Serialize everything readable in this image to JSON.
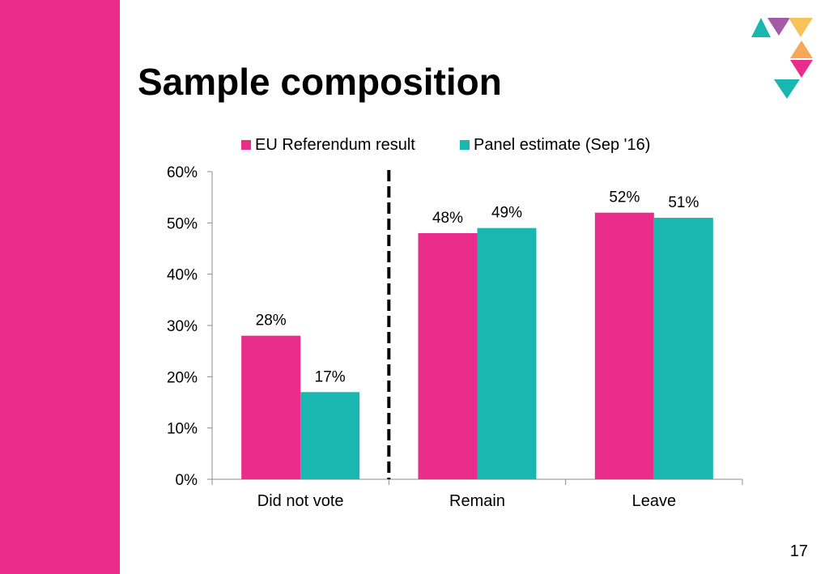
{
  "slide": {
    "title": "Sample composition",
    "page_number": "17"
  },
  "colors": {
    "accent_pink": "#EA2D8B",
    "accent_teal": "#19B7B0",
    "logo_purple": "#A35BA8",
    "logo_yellow": "#F6C35A",
    "logo_orange": "#F5A958"
  },
  "chart_data": {
    "type": "bar",
    "title": "",
    "xlabel": "",
    "ylabel": "",
    "categories": [
      "Did not vote",
      "Remain",
      "Leave"
    ],
    "series": [
      {
        "name": "EU Referendum result",
        "color": "#EA2D8B",
        "values": [
          28,
          48,
          52
        ],
        "labels": [
          "28%",
          "48%",
          "52%"
        ]
      },
      {
        "name": "Panel estimate (Sep '16)",
        "color": "#19B7B0",
        "values": [
          17,
          49,
          51
        ],
        "labels": [
          "17%",
          "49%",
          "51%"
        ]
      }
    ],
    "ylim": [
      0,
      60
    ],
    "yticks": [
      0,
      10,
      20,
      30,
      40,
      50,
      60
    ],
    "ytick_labels": [
      "0%",
      "10%",
      "20%",
      "30%",
      "40%",
      "50%",
      "60%"
    ],
    "grid": false,
    "legend_position": "top",
    "separator_after_category": 0
  }
}
